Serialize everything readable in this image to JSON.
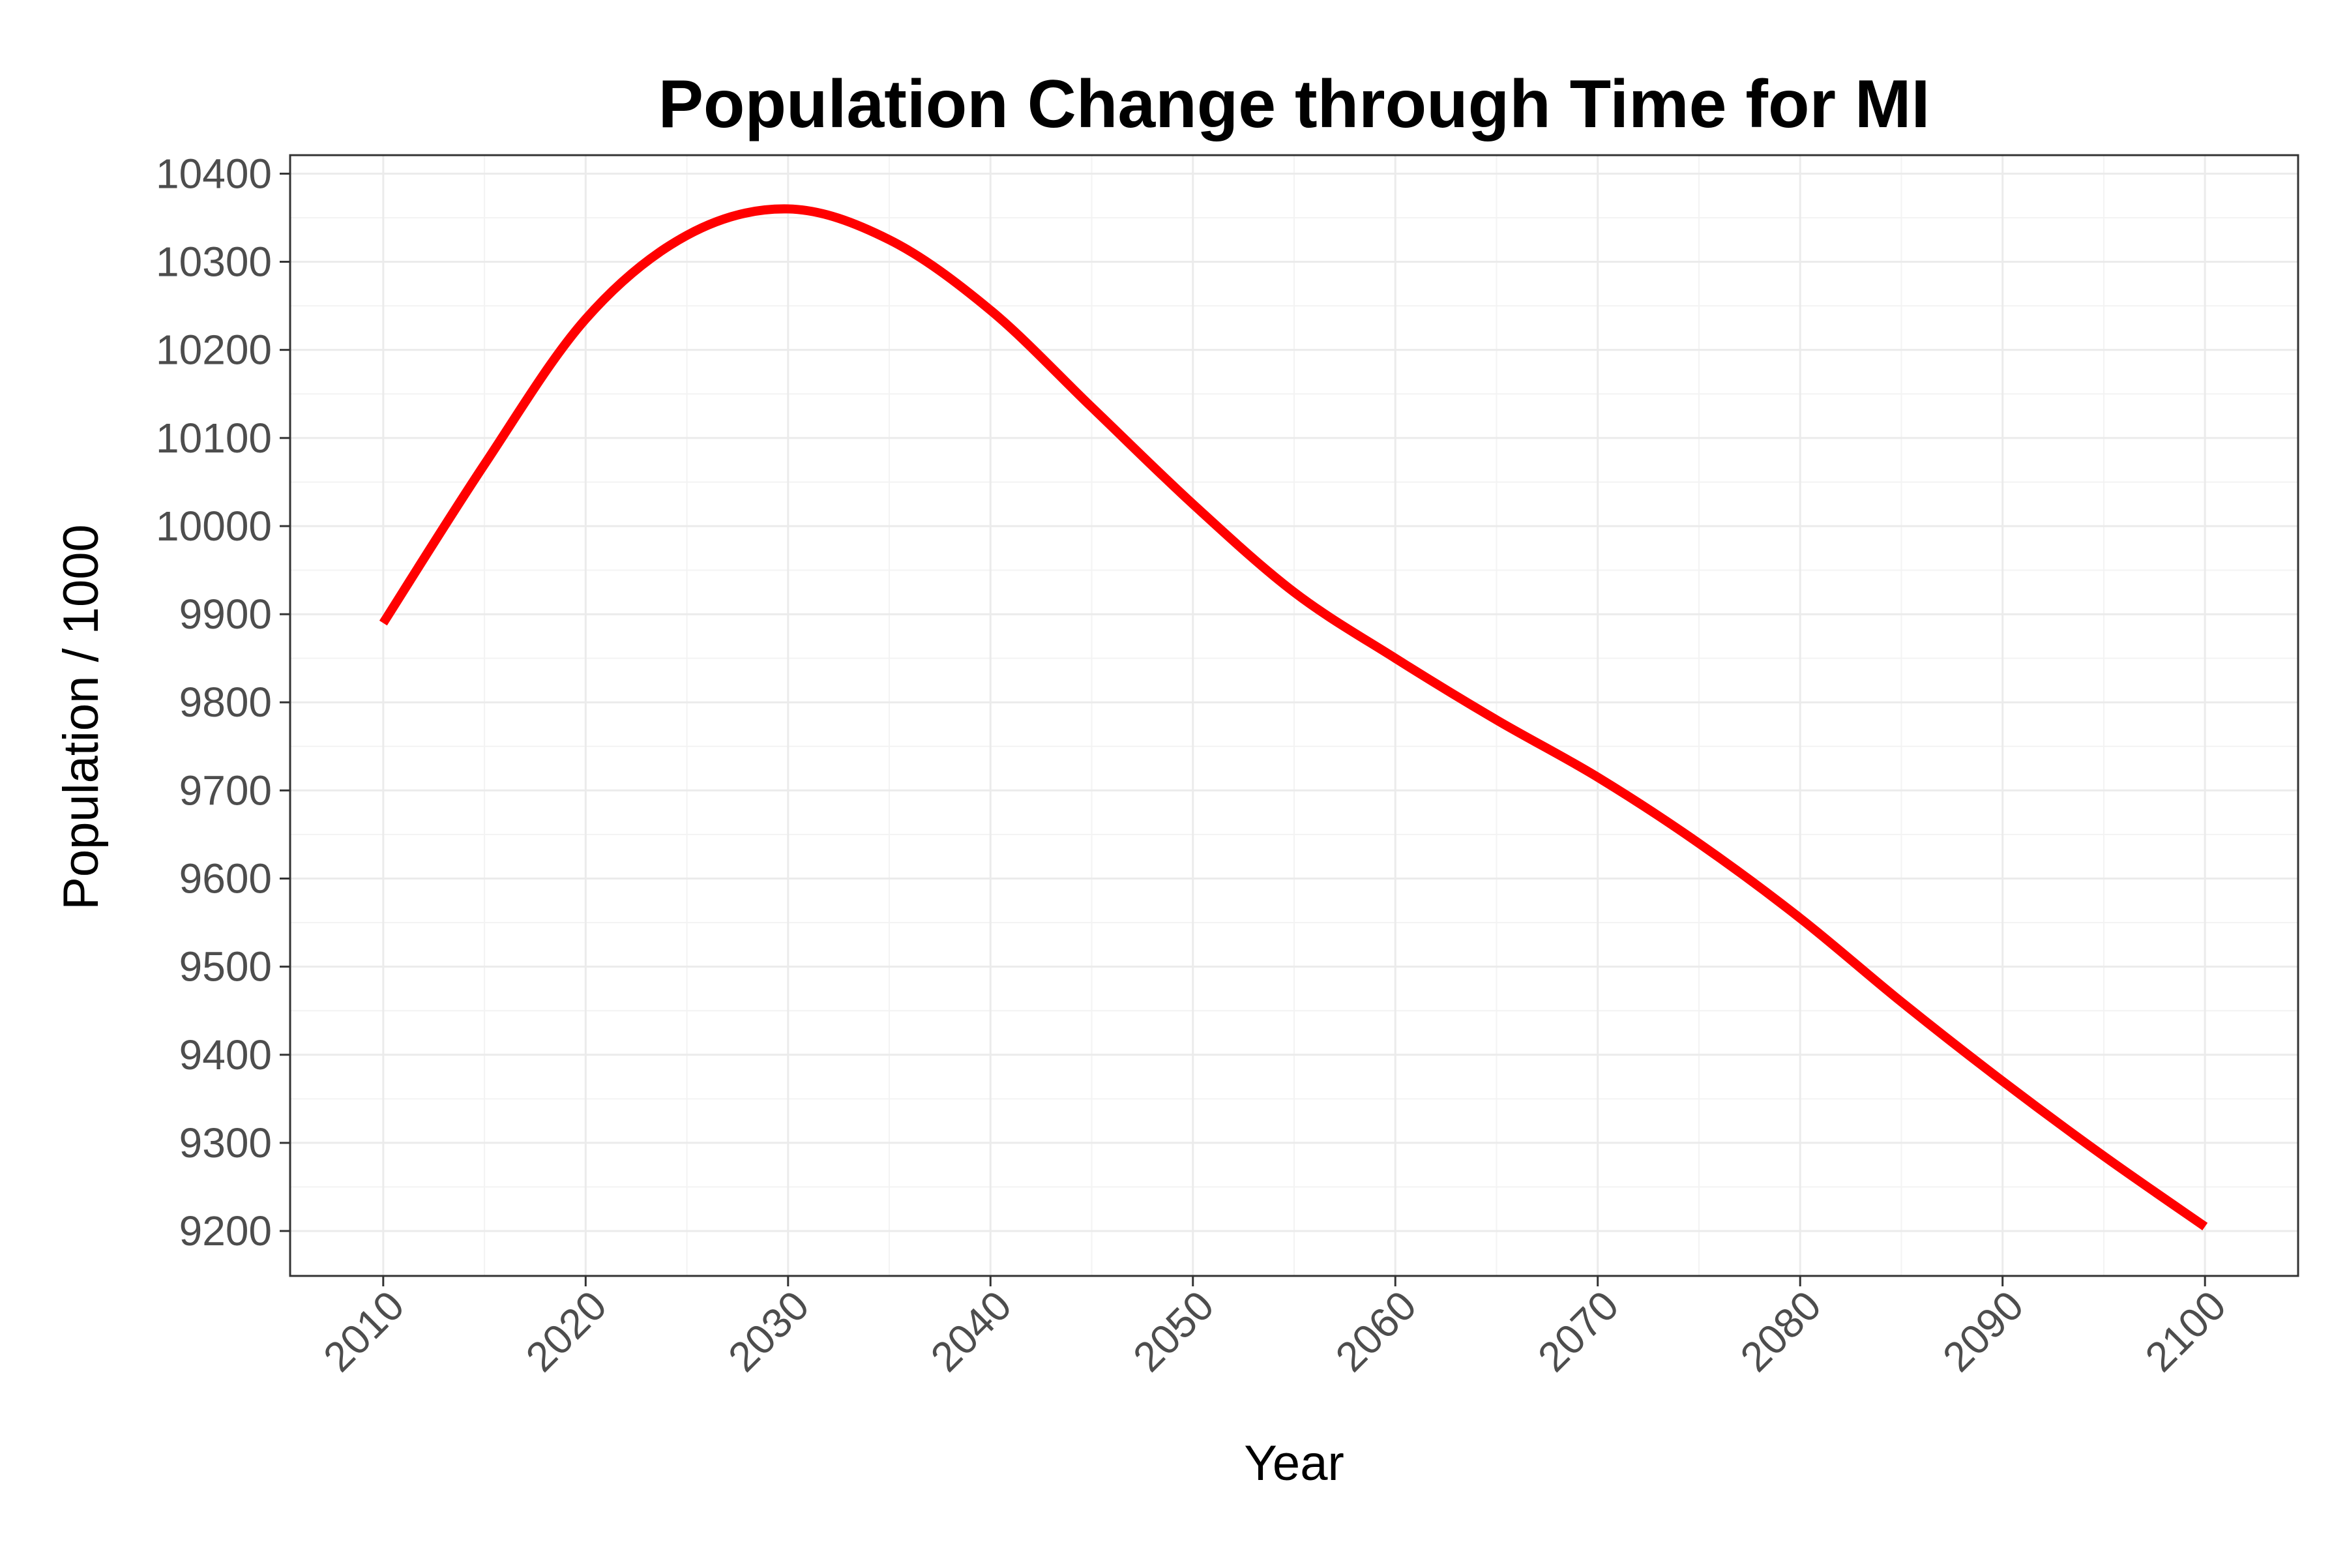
{
  "chart_data": {
    "type": "line",
    "title": "Population Change through Time for MI",
    "xlabel": "Year",
    "ylabel": "Population / 1000",
    "xlim": [
      2005.4,
      2104.6
    ],
    "ylim": [
      9149,
      10421
    ],
    "x_ticks": [
      2010,
      2020,
      2030,
      2040,
      2050,
      2060,
      2070,
      2080,
      2090,
      2100
    ],
    "y_ticks": [
      9200,
      9300,
      9400,
      9500,
      9600,
      9700,
      9800,
      9900,
      10000,
      10100,
      10200,
      10300,
      10400
    ],
    "x_tick_labels": [
      "2010",
      "2020",
      "2030",
      "2040",
      "2050",
      "2060",
      "2070",
      "2080",
      "2090",
      "2100"
    ],
    "y_tick_labels": [
      "9200",
      "9300",
      "9400",
      "9500",
      "9600",
      "9700",
      "9800",
      "9900",
      "10000",
      "10100",
      "10200",
      "10300",
      "10400"
    ],
    "grid": true,
    "legend": "none",
    "series": [
      {
        "color": "#ff0000",
        "x": [
          2010,
          2015,
          2020,
          2025,
          2030,
          2035,
          2040,
          2045,
          2050,
          2055,
          2060,
          2065,
          2070,
          2075,
          2080,
          2085,
          2090,
          2095,
          2100
        ],
        "y": [
          9890,
          10070,
          10235,
          10330,
          10360,
          10325,
          10245,
          10135,
          10025,
          9925,
          9850,
          9780,
          9715,
          9640,
          9555,
          9460,
          9370,
          9285,
          9205
        ]
      }
    ]
  }
}
